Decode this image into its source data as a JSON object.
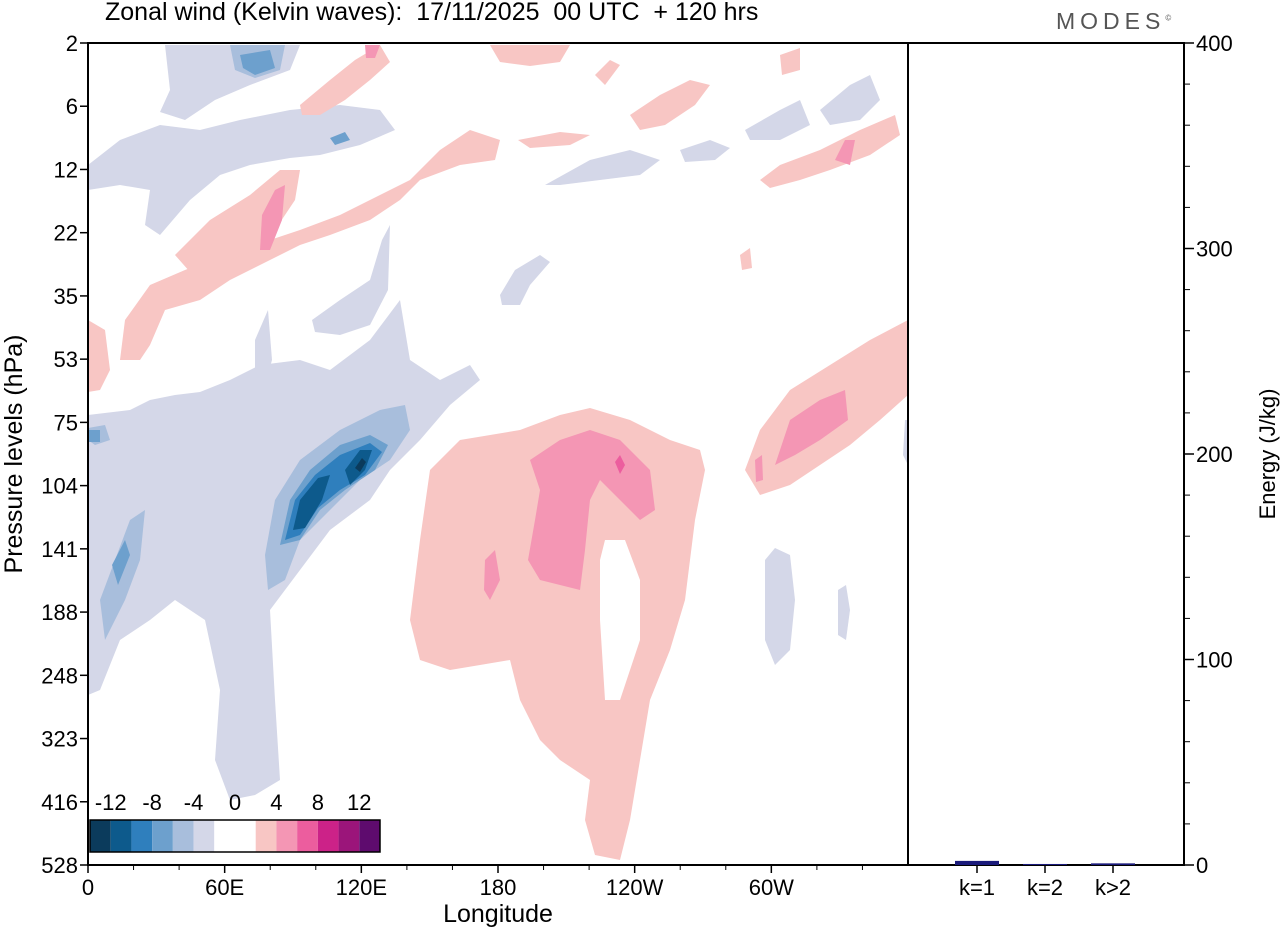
{
  "title": "Zonal wind (Kelvin waves):  17/11/2025  00 UTC  + 120 hrs",
  "brand": "MODES",
  "brand_mark": "©",
  "colors": {
    "blue_dark": "#0b3b5c",
    "blue1": "#0d5a8c",
    "blue2": "#2f7fbd",
    "blue3": "#6da0cd",
    "blue4": "#a8bedc",
    "blue5": "#d4d7e8",
    "white": "#ffffff",
    "pink5": "#f8c6c4",
    "pink4": "#f496b4",
    "pink3": "#ec5d9e",
    "pink2": "#cc2288",
    "pink1": "#9b157a",
    "purple": "#5e0b6e",
    "bar": "#1a1a7a"
  },
  "chart_data": [
    {
      "type": "heatmap",
      "title": "Zonal wind (Kelvin waves):  17/11/2025  00 UTC  + 120 hrs",
      "xlabel": "Longitude",
      "ylabel": "Pressure levels (hPa)",
      "x_ticks": [
        "0",
        "60E",
        "120E",
        "180",
        "120W",
        "60W"
      ],
      "y_ticks": [
        "2",
        "6",
        "12",
        "22",
        "35",
        "53",
        "75",
        "104",
        "141",
        "188",
        "248",
        "323",
        "416",
        "528"
      ],
      "colorbar": {
        "tick_labels": [
          "-12",
          "-8",
          "-4",
          "0",
          "4",
          "8",
          "12"
        ],
        "levels": [
          -14,
          -12,
          -10,
          -8,
          -6,
          -4,
          -2,
          2,
          4,
          6,
          8,
          10,
          12,
          14
        ],
        "colors": [
          "#0b3b5c",
          "#0d5a8c",
          "#2f7fbd",
          "#6da0cd",
          "#a8bedc",
          "#d4d7e8",
          "#ffffff",
          "#ffffff",
          "#f8c6c4",
          "#f496b4",
          "#ec5d9e",
          "#cc2288",
          "#9b157a",
          "#5e0b6e"
        ]
      }
    },
    {
      "type": "bar",
      "ylabel": "Energy (J/kg)",
      "categories": [
        "k=1",
        "k=2",
        "k>2"
      ],
      "values": [
        2,
        0.5,
        0.8
      ],
      "ylim": [
        0,
        400
      ],
      "y_ticks": [
        "0",
        "100",
        "200",
        "300",
        "400"
      ]
    }
  ]
}
